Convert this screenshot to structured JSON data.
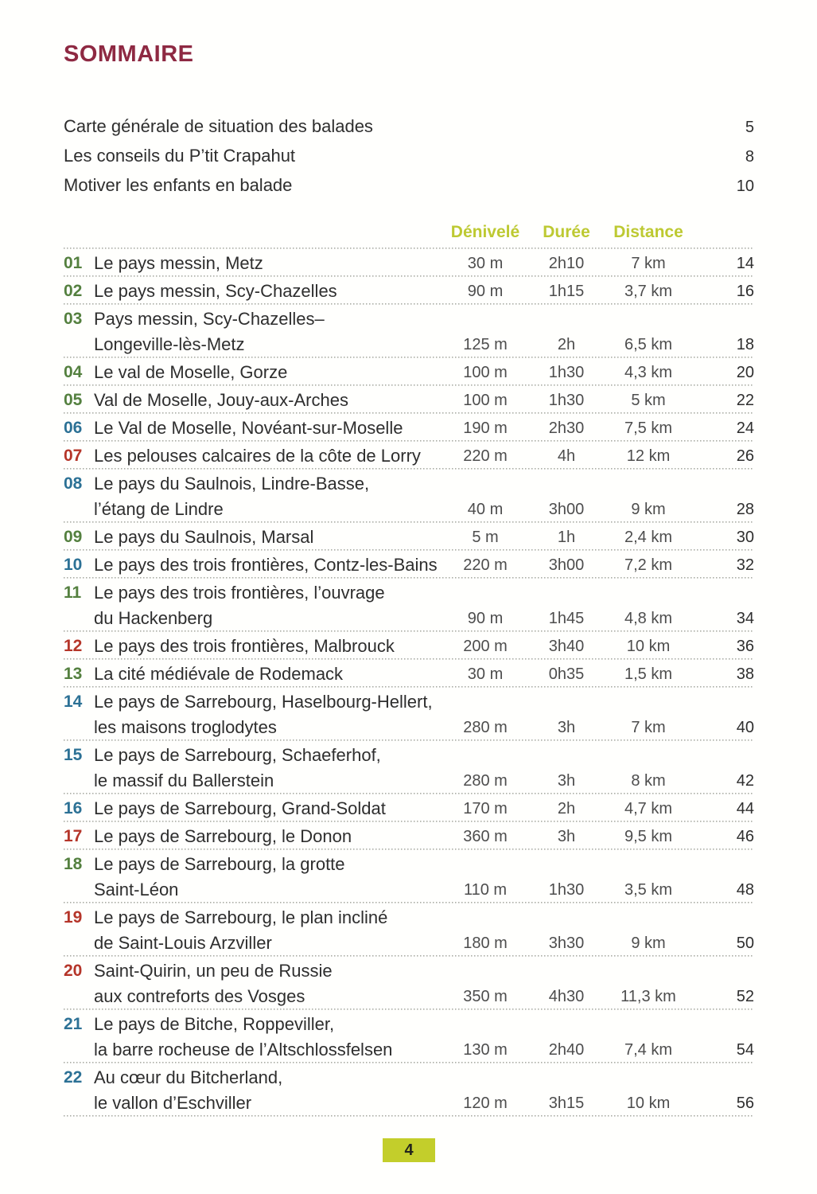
{
  "page": {
    "title": "SOMMAIRE",
    "footer_page_number": "4"
  },
  "theme": {
    "title_color": "#8e2942",
    "header_color": "#bdc932",
    "badge_background": "#c3ce2b",
    "difficulty_green": "#54803f",
    "difficulty_blue": "#2c7195",
    "difficulty_red": "#b53529"
  },
  "intro_items": [
    {
      "label": "Carte générale de situation des balades",
      "page": "5"
    },
    {
      "label": "Les conseils du P’tit Crapahut",
      "page": "8"
    },
    {
      "label": "Motiver les enfants en balade",
      "page": "10"
    }
  ],
  "table": {
    "headers": {
      "denivele": "Dénivelé",
      "duree": "Durée",
      "distance": "Distance"
    },
    "rows": [
      {
        "num": "01",
        "difficulty": "green",
        "title_lines": [
          "Le pays messin, Metz"
        ],
        "denivele": "30 m",
        "duree": "2h10",
        "distance": "7 km",
        "page": "14"
      },
      {
        "num": "02",
        "difficulty": "green",
        "title_lines": [
          "Le pays messin, Scy-Chazelles"
        ],
        "denivele": "90 m",
        "duree": "1h15",
        "distance": "3,7 km",
        "page": "16"
      },
      {
        "num": "03",
        "difficulty": "green",
        "title_lines": [
          "Pays messin, Scy-Chazelles–",
          "Longeville-lès-Metz"
        ],
        "denivele": "125 m",
        "duree": "2h",
        "distance": "6,5 km",
        "page": "18"
      },
      {
        "num": "04",
        "difficulty": "green",
        "title_lines": [
          "Le val de Moselle, Gorze"
        ],
        "denivele": "100 m",
        "duree": "1h30",
        "distance": "4,3 km",
        "page": "20"
      },
      {
        "num": "05",
        "difficulty": "green",
        "title_lines": [
          "Val de Moselle, Jouy-aux-Arches"
        ],
        "denivele": "100 m",
        "duree": "1h30",
        "distance": "5 km",
        "page": "22"
      },
      {
        "num": "06",
        "difficulty": "blue",
        "title_lines": [
          "Le Val de Moselle, Novéant-sur-Moselle"
        ],
        "denivele": "190 m",
        "duree": "2h30",
        "distance": "7,5 km",
        "page": "24"
      },
      {
        "num": "07",
        "difficulty": "red",
        "title_lines": [
          "Les pelouses calcaires de la côte de Lorry"
        ],
        "denivele": "220 m",
        "duree": "4h",
        "distance": "12 km",
        "page": "26"
      },
      {
        "num": "08",
        "difficulty": "blue",
        "title_lines": [
          "Le pays du Saulnois, Lindre-Basse,",
          "l’étang de Lindre"
        ],
        "denivele": "40 m",
        "duree": "3h00",
        "distance": "9 km",
        "page": "28"
      },
      {
        "num": "09",
        "difficulty": "green",
        "title_lines": [
          "Le pays du Saulnois, Marsal"
        ],
        "denivele": "5 m",
        "duree": "1h",
        "distance": "2,4 km",
        "page": "30"
      },
      {
        "num": "10",
        "difficulty": "blue",
        "title_lines": [
          "Le pays des trois frontières, Contz-les-Bains"
        ],
        "denivele": "220 m",
        "duree": "3h00",
        "distance": "7,2 km",
        "page": "32"
      },
      {
        "num": "11",
        "difficulty": "green",
        "title_lines": [
          "Le pays des trois frontières, l’ouvrage",
          "du Hackenberg"
        ],
        "denivele": "90 m",
        "duree": "1h45",
        "distance": "4,8 km",
        "page": "34"
      },
      {
        "num": "12",
        "difficulty": "red",
        "title_lines": [
          "Le pays des trois frontières, Malbrouck"
        ],
        "denivele": "200 m",
        "duree": "3h40",
        "distance": "10 km",
        "page": "36"
      },
      {
        "num": "13",
        "difficulty": "green",
        "title_lines": [
          "La cité médiévale de Rodemack"
        ],
        "denivele": "30 m",
        "duree": "0h35",
        "distance": "1,5 km",
        "page": "38"
      },
      {
        "num": "14",
        "difficulty": "blue",
        "title_lines": [
          "Le pays de Sarrebourg, Haselbourg-Hellert,",
          "les maisons troglodytes"
        ],
        "denivele": "280 m",
        "duree": "3h",
        "distance": "7 km",
        "page": "40"
      },
      {
        "num": "15",
        "difficulty": "blue",
        "title_lines": [
          "Le pays de Sarrebourg, Schaeferhof,",
          "le massif du Ballerstein"
        ],
        "denivele": "280 m",
        "duree": "3h",
        "distance": "8 km",
        "page": "42"
      },
      {
        "num": "16",
        "difficulty": "blue",
        "title_lines": [
          "Le pays de Sarrebourg, Grand-Soldat"
        ],
        "denivele": "170 m",
        "duree": "2h",
        "distance": "4,7 km",
        "page": "44"
      },
      {
        "num": "17",
        "difficulty": "red",
        "title_lines": [
          "Le pays de Sarrebourg, le Donon"
        ],
        "denivele": "360 m",
        "duree": "3h",
        "distance": "9,5 km",
        "page": "46"
      },
      {
        "num": "18",
        "difficulty": "green",
        "title_lines": [
          "Le pays de Sarrebourg, la grotte",
          "Saint-Léon"
        ],
        "denivele": "110 m",
        "duree": "1h30",
        "distance": "3,5 km",
        "page": "48"
      },
      {
        "num": "19",
        "difficulty": "red",
        "title_lines": [
          "Le pays de Sarrebourg, le plan incliné",
          "de Saint-Louis Arzviller"
        ],
        "denivele": "180 m",
        "duree": "3h30",
        "distance": "9 km",
        "page": "50"
      },
      {
        "num": "20",
        "difficulty": "red",
        "title_lines": [
          "Saint-Quirin, un peu de Russie",
          "aux contreforts des Vosges"
        ],
        "denivele": "350 m",
        "duree": "4h30",
        "distance": "11,3 km",
        "page": "52"
      },
      {
        "num": "21",
        "difficulty": "blue",
        "title_lines": [
          "Le pays de Bitche, Roppeviller,",
          "la barre rocheuse de l’Altschlossfelsen"
        ],
        "denivele": "130 m",
        "duree": "2h40",
        "distance": "7,4 km",
        "page": "54"
      },
      {
        "num": "22",
        "difficulty": "blue",
        "title_lines": [
          "Au cœur du Bitcherland,",
          "le vallon d’Eschviller"
        ],
        "denivele": "120 m",
        "duree": "3h15",
        "distance": "10 km",
        "page": "56"
      }
    ]
  }
}
